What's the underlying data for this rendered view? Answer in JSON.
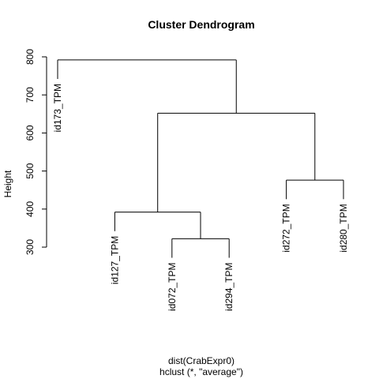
{
  "chart_data": {
    "type": "dendrogram",
    "title": "Cluster Dendrogram",
    "ylabel": "Height",
    "xlabel": "dist(CrabExpr0)",
    "sublabel": "hclust (*, \"average\")",
    "ylim": [
      300,
      800
    ],
    "yticks": [
      300,
      400,
      500,
      600,
      700,
      800
    ],
    "leaves": [
      "id173_TPM",
      "id127_TPM",
      "id072_TPM",
      "id294_TPM",
      "id272_TPM",
      "id280_TPM"
    ],
    "merges": [
      {
        "left": "id072_TPM",
        "right": "id294_TPM",
        "height": 322
      },
      {
        "left": "id272_TPM",
        "right": "id280_TPM",
        "height": 476
      },
      {
        "left": "id127_TPM",
        "right": "cluster-1",
        "height": 392
      },
      {
        "left": "cluster-3",
        "right": "cluster-2",
        "height": 652
      },
      {
        "left": "id173_TPM",
        "right": "cluster-4",
        "height": 792
      }
    ]
  }
}
